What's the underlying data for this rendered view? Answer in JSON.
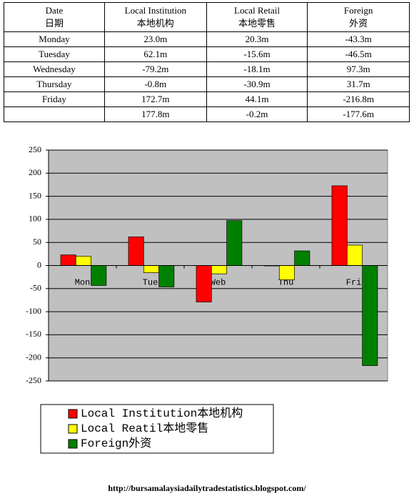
{
  "table": {
    "header": [
      [
        "Date",
        "日期"
      ],
      [
        "Local Institution",
        "本地机构"
      ],
      [
        "Local Retail",
        "本地零售"
      ],
      [
        "Foreign",
        "外资"
      ]
    ],
    "rows": [
      [
        "Monday",
        "23.0m",
        "20.3m",
        "-43.3m"
      ],
      [
        "Tuesday",
        "62.1m",
        "-15.6m",
        "-46.5m"
      ],
      [
        "Wednesday",
        "-79.2m",
        "-18.1m",
        "97.3m"
      ],
      [
        "Thursday",
        "-0.8m",
        "-30.9m",
        "31.7m"
      ],
      [
        "Friday",
        "172.7m",
        "44.1m",
        "-216.8m"
      ],
      [
        null,
        "177.8m",
        "-0.2m",
        "-177.6m"
      ]
    ]
  },
  "chart_data": {
    "type": "bar",
    "categories": [
      "Mon",
      "Tue",
      "Web",
      "Thu",
      "Fri"
    ],
    "series": [
      {
        "name": "Local Institution本地机构",
        "color": "#ff0000",
        "values": [
          23.0,
          62.1,
          -79.2,
          -0.8,
          172.7
        ]
      },
      {
        "name": "Local Reatil本地零售",
        "color": "#ffff00",
        "values": [
          20.3,
          -15.6,
          -18.1,
          -30.9,
          44.1
        ]
      },
      {
        "name": "Foreign外资",
        "color": "#008000",
        "values": [
          -43.3,
          -46.5,
          97.3,
          31.7,
          -216.8
        ]
      }
    ],
    "ylim": [
      -250,
      250
    ],
    "yticks": [
      -250,
      -200,
      -150,
      -100,
      -50,
      0,
      50,
      100,
      150,
      200,
      250
    ],
    "grid": true
  },
  "footer": "http://bursamalaysiadailytradestatistics.blogspot.com/"
}
